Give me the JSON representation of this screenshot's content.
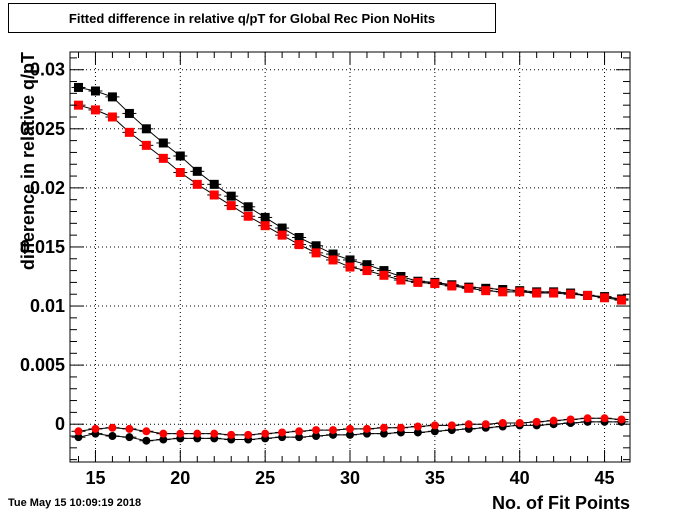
{
  "title": "Fitted difference in relative q/pT for Global Rec Pion NoHits",
  "timestamp": "Tue May 15 10:09:19 2018",
  "chart_data": {
    "type": "scatter",
    "xlabel": "No. of Fit Points",
    "ylabel": "difference in relative q/pT",
    "xlim": [
      13.5,
      46.5
    ],
    "ylim": [
      -0.0032,
      0.0315
    ],
    "grid": true,
    "xticks": [
      15,
      20,
      25,
      30,
      35,
      40,
      45
    ],
    "xtick_labels": [
      "15",
      "20",
      "25",
      "30",
      "35",
      "40",
      "45"
    ],
    "yticks": [
      0,
      0.005,
      0.01,
      0.015,
      0.02,
      0.025,
      0.03
    ],
    "ytick_labels": [
      "0",
      "0.005",
      "0.01",
      "0.015",
      "0.02",
      "0.025",
      "0.03"
    ],
    "x": [
      14,
      15,
      16,
      17,
      18,
      19,
      20,
      21,
      22,
      23,
      24,
      25,
      26,
      27,
      28,
      29,
      30,
      31,
      32,
      33,
      34,
      35,
      36,
      37,
      38,
      39,
      40,
      41,
      42,
      43,
      44,
      45,
      46
    ],
    "series": [
      {
        "marker": "square",
        "color": "#000000",
        "values": [
          0.0285,
          0.0282,
          0.0277,
          0.0263,
          0.025,
          0.0238,
          0.0227,
          0.0214,
          0.0203,
          0.0193,
          0.0184,
          0.0175,
          0.0166,
          0.0158,
          0.0151,
          0.0144,
          0.0139,
          0.0135,
          0.013,
          0.0125,
          0.0121,
          0.012,
          0.0118,
          0.0116,
          0.0115,
          0.0114,
          0.0113,
          0.0112,
          0.0112,
          0.0111,
          0.0109,
          0.0108,
          0.0106
        ]
      },
      {
        "marker": "square",
        "color": "#ff0000",
        "values": [
          0.027,
          0.0266,
          0.026,
          0.0247,
          0.0236,
          0.0225,
          0.0213,
          0.0203,
          0.0194,
          0.0185,
          0.0176,
          0.0168,
          0.016,
          0.0152,
          0.0145,
          0.0139,
          0.0133,
          0.013,
          0.0126,
          0.0122,
          0.012,
          0.0119,
          0.0117,
          0.0115,
          0.0113,
          0.0112,
          0.0112,
          0.0111,
          0.0111,
          0.011,
          0.0109,
          0.0107,
          0.0105
        ]
      },
      {
        "marker": "circle",
        "color": "#000000",
        "values": [
          -0.0011,
          -0.0008,
          -0.001,
          -0.0011,
          -0.0014,
          -0.0013,
          -0.0012,
          -0.0012,
          -0.0012,
          -0.0013,
          -0.0013,
          -0.0012,
          -0.0011,
          -0.0011,
          -0.001,
          -0.0009,
          -0.0009,
          -0.0008,
          -0.0008,
          -0.0007,
          -0.0007,
          -0.0006,
          -0.0005,
          -0.0004,
          -0.0003,
          -0.0002,
          -0.0001,
          -0.0001,
          0.0,
          0.0001,
          0.0002,
          0.0002,
          0.0002
        ]
      },
      {
        "marker": "circle",
        "color": "#ff0000",
        "values": [
          -0.0006,
          -0.0004,
          -0.0003,
          -0.0004,
          -0.0006,
          -0.0008,
          -0.0008,
          -0.0008,
          -0.0008,
          -0.0009,
          -0.0009,
          -0.0008,
          -0.0007,
          -0.0006,
          -0.0005,
          -0.0005,
          -0.0004,
          -0.0004,
          -0.0003,
          -0.0003,
          -0.0002,
          -0.0001,
          -0.0001,
          0.0,
          0.0,
          0.0001,
          0.0001,
          0.0002,
          0.0003,
          0.0004,
          0.0005,
          0.0005,
          0.0004
        ]
      }
    ]
  }
}
